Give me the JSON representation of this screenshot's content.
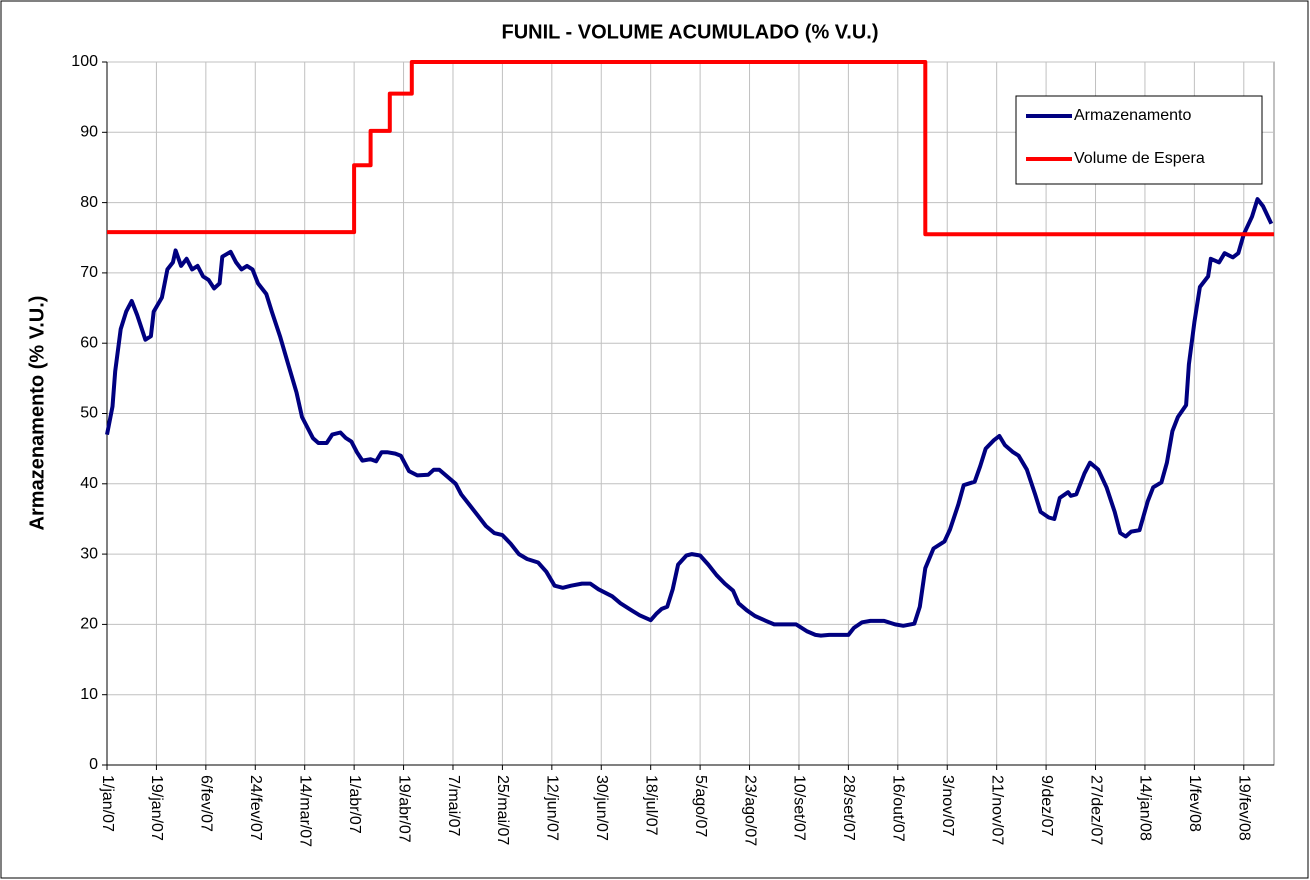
{
  "chart_data": {
    "type": "line",
    "title": "FUNIL - VOLUME ACUMULADO (% V.U.)",
    "y_label": "Armazenamento (% V.U.)",
    "xlim": [
      "2007-01-01",
      "2008-03-01"
    ],
    "ylim": [
      0,
      100
    ],
    "yticks": [
      0,
      10,
      20,
      30,
      40,
      50,
      60,
      70,
      80,
      90,
      100
    ],
    "xticks": [
      {
        "value": "2007-01-01",
        "label": "1/jan/07"
      },
      {
        "value": "2007-01-19",
        "label": "19/jan/07"
      },
      {
        "value": "2007-02-06",
        "label": "6/fev/07"
      },
      {
        "value": "2007-02-24",
        "label": "24/fev/07"
      },
      {
        "value": "2007-03-14",
        "label": "14/mar/07"
      },
      {
        "value": "2007-04-01",
        "label": "1/abr/07"
      },
      {
        "value": "2007-04-19",
        "label": "19/abr/07"
      },
      {
        "value": "2007-05-07",
        "label": "7/mai/07"
      },
      {
        "value": "2007-05-25",
        "label": "25/mai/07"
      },
      {
        "value": "2007-06-12",
        "label": "12/jun/07"
      },
      {
        "value": "2007-06-30",
        "label": "30/jun/07"
      },
      {
        "value": "2007-07-18",
        "label": "18/jul/07"
      },
      {
        "value": "2007-08-05",
        "label": "5/ago/07"
      },
      {
        "value": "2007-08-23",
        "label": "23/ago/07"
      },
      {
        "value": "2007-09-10",
        "label": "10/set/07"
      },
      {
        "value": "2007-09-28",
        "label": "28/set/07"
      },
      {
        "value": "2007-10-16",
        "label": "16/out/07"
      },
      {
        "value": "2007-11-03",
        "label": "3/nov/07"
      },
      {
        "value": "2007-11-21",
        "label": "21/nov/07"
      },
      {
        "value": "2007-12-09",
        "label": "9/dez/07"
      },
      {
        "value": "2007-12-27",
        "label": "27/dez/07"
      },
      {
        "value": "2008-01-14",
        "label": "14/jan/08"
      },
      {
        "value": "2008-02-01",
        "label": "1/fev/08"
      },
      {
        "value": "2008-02-19",
        "label": "19/fev/08"
      }
    ],
    "grid": true,
    "legend": "top-right",
    "series": [
      {
        "name": "Armazenamento",
        "color": "#000080",
        "x": [
          "2007-01-01",
          "2007-01-03",
          "2007-01-04",
          "2007-01-06",
          "2007-01-08",
          "2007-01-10",
          "2007-01-12",
          "2007-01-15",
          "2007-01-17",
          "2007-01-18",
          "2007-01-21",
          "2007-01-23",
          "2007-01-25",
          "2007-01-26",
          "2007-01-28",
          "2007-01-30",
          "2007-02-01",
          "2007-02-03",
          "2007-02-05",
          "2007-02-07",
          "2007-02-09",
          "2007-02-11",
          "2007-02-12",
          "2007-02-15",
          "2007-02-17",
          "2007-02-19",
          "2007-02-21",
          "2007-02-23",
          "2007-02-25",
          "2007-02-28",
          "2007-03-02",
          "2007-03-05",
          "2007-03-08",
          "2007-03-11",
          "2007-03-13",
          "2007-03-17",
          "2007-03-19",
          "2007-03-22",
          "2007-03-24",
          "2007-03-27",
          "2007-03-29",
          "2007-03-31",
          "2007-04-02",
          "2007-04-04",
          "2007-04-07",
          "2007-04-09",
          "2007-04-11",
          "2007-04-13",
          "2007-04-16",
          "2007-04-18",
          "2007-04-21",
          "2007-04-24",
          "2007-04-28",
          "2007-04-30",
          "2007-05-02",
          "2007-05-05",
          "2007-05-08",
          "2007-05-10",
          "2007-05-13",
          "2007-05-16",
          "2007-05-19",
          "2007-05-22",
          "2007-05-25",
          "2007-05-28",
          "2007-05-31",
          "2007-06-03",
          "2007-06-07",
          "2007-06-10",
          "2007-06-13",
          "2007-06-16",
          "2007-06-19",
          "2007-06-23",
          "2007-06-26",
          "2007-06-29",
          "2007-07-04",
          "2007-07-07",
          "2007-07-11",
          "2007-07-14",
          "2007-07-18",
          "2007-07-20",
          "2007-07-22",
          "2007-07-24",
          "2007-07-26",
          "2007-07-28",
          "2007-07-31",
          "2007-08-02",
          "2007-08-05",
          "2007-08-08",
          "2007-08-11",
          "2007-08-14",
          "2007-08-17",
          "2007-08-19",
          "2007-08-22",
          "2007-08-25",
          "2007-08-29",
          "2007-09-01",
          "2007-09-09",
          "2007-09-13",
          "2007-09-16",
          "2007-09-18",
          "2007-09-21",
          "2007-09-28",
          "2007-09-30",
          "2007-10-03",
          "2007-10-06",
          "2007-10-11",
          "2007-10-15",
          "2007-10-18",
          "2007-10-22",
          "2007-10-24",
          "2007-10-26",
          "2007-10-29",
          "2007-11-02",
          "2007-11-04",
          "2007-11-07",
          "2007-11-09",
          "2007-11-13",
          "2007-11-15",
          "2007-11-17",
          "2007-11-20",
          "2007-11-22",
          "2007-11-24",
          "2007-11-27",
          "2007-11-29",
          "2007-12-02",
          "2007-12-05",
          "2007-12-07",
          "2007-12-10",
          "2007-12-12",
          "2007-12-14",
          "2007-12-17",
          "2007-12-18",
          "2007-12-20",
          "2007-12-23",
          "2007-12-25",
          "2007-12-28",
          "2007-12-31",
          "2008-01-03",
          "2008-01-05",
          "2008-01-07",
          "2008-01-09",
          "2008-01-12",
          "2008-01-15",
          "2008-01-17",
          "2008-01-20",
          "2008-01-22",
          "2008-01-24",
          "2008-01-26",
          "2008-01-29",
          "2008-01-30",
          "2008-02-01",
          "2008-02-03",
          "2008-02-06",
          "2008-02-07",
          "2008-02-10",
          "2008-02-12",
          "2008-02-15",
          "2008-02-17",
          "2008-02-19",
          "2008-02-22",
          "2008-02-24",
          "2008-02-26",
          "2008-02-29"
        ],
        "values": [
          47,
          51,
          56,
          62,
          64.5,
          66,
          64,
          60.5,
          61,
          64.5,
          66.5,
          70.5,
          71.5,
          73.2,
          71,
          72,
          70.5,
          71,
          69.5,
          69,
          67.8,
          68.5,
          72.3,
          73,
          71.5,
          70.5,
          71,
          70.5,
          68.5,
          67,
          64.5,
          61,
          57,
          53,
          49.5,
          46.5,
          45.8,
          45.8,
          47,
          47.3,
          46.5,
          46,
          44.5,
          43.3,
          43.5,
          43.2,
          44.5,
          44.5,
          44.3,
          44,
          41.8,
          41.2,
          41.3,
          42,
          42,
          41,
          40,
          38.5,
          37,
          35.5,
          34,
          33,
          32.7,
          31.5,
          30,
          29.3,
          28.8,
          27.5,
          25.5,
          25.2,
          25.5,
          25.8,
          25.8,
          25,
          24,
          23,
          22,
          21.3,
          20.6,
          21.5,
          22.2,
          22.5,
          25,
          28.5,
          29.8,
          30,
          29.8,
          28.5,
          27,
          25.8,
          24.8,
          23,
          22,
          21.2,
          20.5,
          20,
          20,
          19,
          18.5,
          18.4,
          18.5,
          18.5,
          19.5,
          20.3,
          20.5,
          20.5,
          20,
          19.8,
          20.1,
          22.5,
          28,
          30.8,
          31.8,
          33.5,
          37,
          39.8,
          40.3,
          42.5,
          45,
          46.2,
          46.8,
          45.5,
          44.5,
          44,
          42,
          38.5,
          36,
          35.2,
          35,
          38,
          38.8,
          38.3,
          38.5,
          41.5,
          43,
          42,
          39.5,
          36,
          33,
          32.5,
          33.2,
          33.4,
          37.5,
          39.5,
          40.2,
          43,
          47.5,
          49.5,
          51.2,
          57,
          63,
          68,
          69.5,
          72,
          71.5,
          72.8,
          72.2,
          72.8,
          75.5,
          78,
          80.5,
          79.5,
          77
        ]
      },
      {
        "name": "Volume de Espera",
        "color": "#ff0000",
        "x": [
          "2007-01-01",
          "2007-04-01",
          "2007-04-01",
          "2007-04-07",
          "2007-04-07",
          "2007-04-14",
          "2007-04-14",
          "2007-04-22",
          "2007-04-22",
          "2007-10-26",
          "2007-10-26",
          "2008-03-01"
        ],
        "values": [
          75.8,
          75.8,
          85.3,
          85.3,
          90.2,
          90.2,
          95.5,
          95.5,
          100,
          100,
          75.5,
          75.5
        ]
      }
    ]
  }
}
